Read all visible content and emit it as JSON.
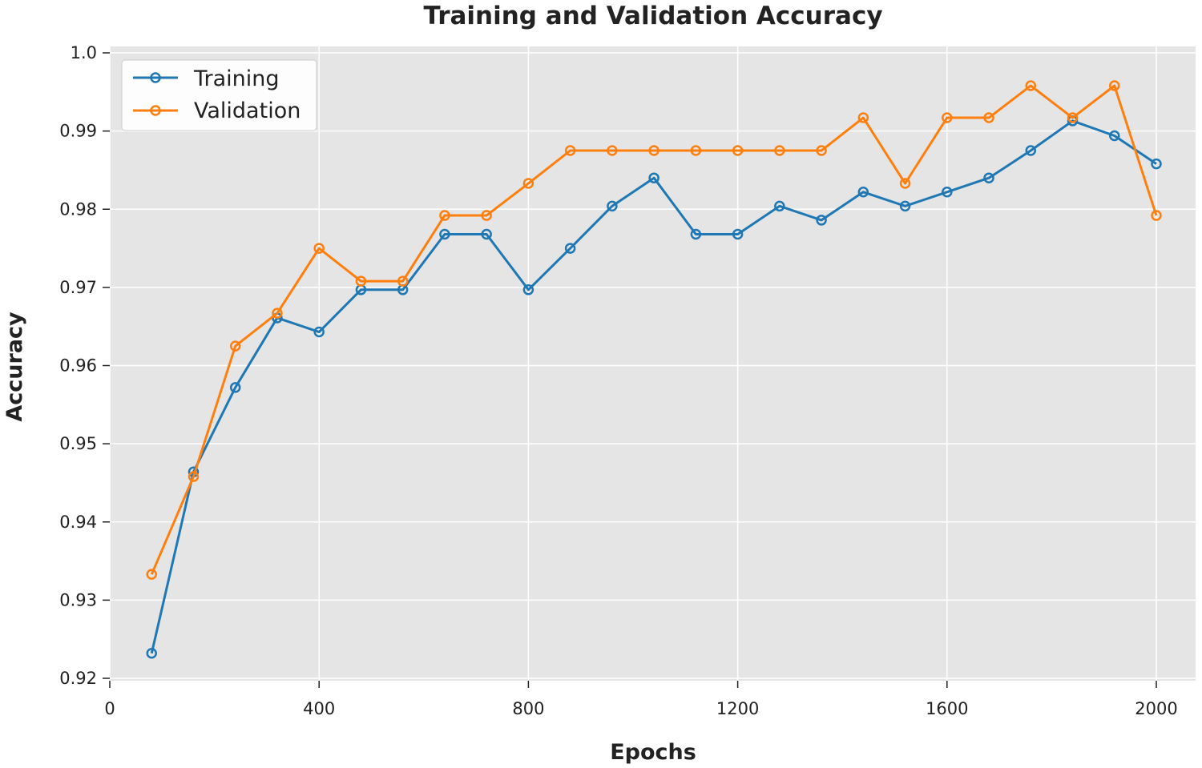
{
  "chart_data": {
    "type": "line",
    "title": "Training and Validation Accuracy",
    "xlabel": "Epochs",
    "ylabel": "Accuracy",
    "xlim": [
      0,
      2050
    ],
    "ylim": [
      0.92,
      1.0
    ],
    "xticks": [
      0,
      400,
      800,
      1200,
      1600,
      2000
    ],
    "yticks": [
      0.92,
      0.93,
      0.94,
      0.95,
      0.96,
      0.97,
      0.98,
      0.99,
      1.0
    ],
    "ytick_labels": [
      "0.92",
      "0.93",
      "0.94",
      "0.95",
      "0.96",
      "0.97",
      "0.98",
      "0.99",
      "1.0"
    ],
    "grid": true,
    "legend_position": "top-left",
    "x": [
      80,
      160,
      240,
      320,
      400,
      480,
      560,
      640,
      720,
      800,
      880,
      960,
      1040,
      1120,
      1200,
      1280,
      1360,
      1440,
      1520,
      1600,
      1680,
      1760,
      1840,
      1920,
      2000
    ],
    "series": [
      {
        "name": "Training",
        "color": "#1f77b4",
        "values": [
          0.9232,
          0.9464,
          0.9572,
          0.9661,
          0.9643,
          0.9697,
          0.9697,
          0.9768,
          0.9768,
          0.9697,
          0.975,
          0.9804,
          0.984,
          0.9768,
          0.9768,
          0.9804,
          0.9786,
          0.9822,
          0.9804,
          0.9822,
          0.984,
          0.9875,
          0.9913,
          0.9894,
          0.9858
        ]
      },
      {
        "name": "Validation",
        "color": "#ff7f0e",
        "values": [
          0.9333,
          0.9458,
          0.9625,
          0.9667,
          0.975,
          0.9708,
          0.9708,
          0.9792,
          0.9792,
          0.9833,
          0.9875,
          0.9875,
          0.9875,
          0.9875,
          0.9875,
          0.9875,
          0.9875,
          0.9917,
          0.9833,
          0.9917,
          0.9917,
          0.9958,
          0.9917,
          0.9958,
          0.9792
        ]
      }
    ]
  }
}
